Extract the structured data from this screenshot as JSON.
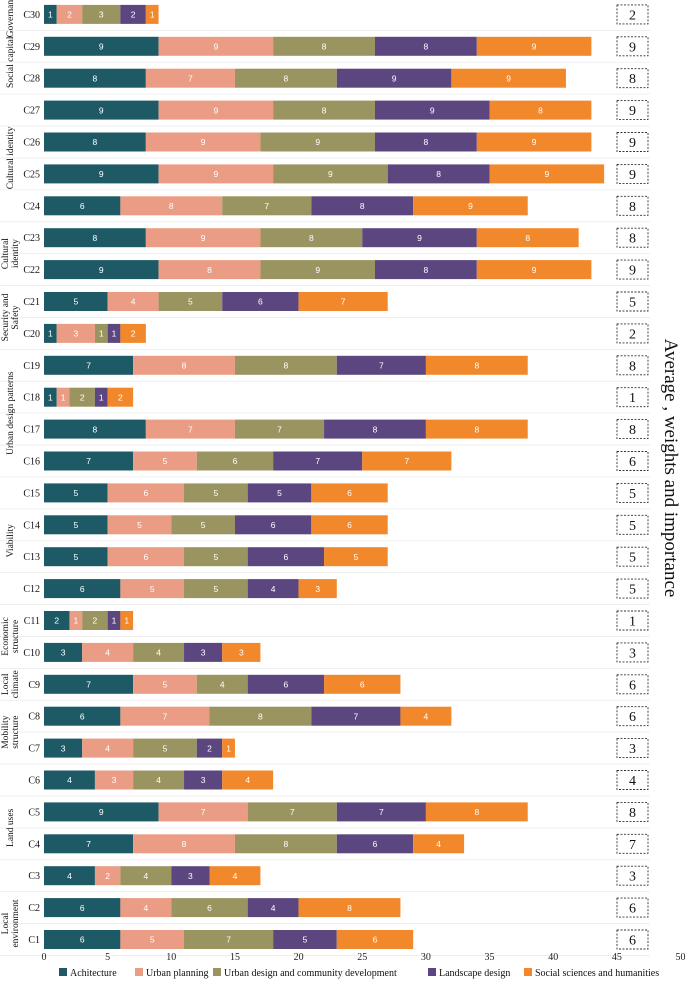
{
  "chart_data": {
    "type": "bar",
    "orientation": "horizontal",
    "stacked": true,
    "title": "",
    "xlabel": "",
    "ylabel": "Average , weights and importance",
    "xlim": [
      0,
      50
    ],
    "xticks": [
      0,
      5,
      10,
      15,
      20,
      25,
      30,
      35,
      40,
      45,
      50
    ],
    "legend_position": "bottom",
    "colors": [
      "#1e5a66",
      "#eb9c84",
      "#9a9460",
      "#5c4680",
      "#f2882c"
    ],
    "categories": [
      "C1",
      "C2",
      "C3",
      "C4",
      "C5",
      "C6",
      "C7",
      "C8",
      "C9",
      "C10",
      "C11",
      "C12",
      "C13",
      "C14",
      "C15",
      "C16",
      "C17",
      "C18",
      "C19",
      "C20",
      "C21",
      "C22",
      "C23",
      "C24",
      "C25",
      "C26",
      "C27",
      "C28",
      "C29",
      "C30"
    ],
    "series": [
      {
        "name": "Achitecture",
        "values": [
          6,
          6,
          4,
          7,
          9,
          4,
          3,
          6,
          7,
          3,
          2,
          6,
          5,
          5,
          5,
          7,
          8,
          1,
          7,
          1,
          5,
          9,
          8,
          6,
          9,
          8,
          9,
          8,
          9,
          1
        ]
      },
      {
        "name": "Urban planning",
        "values": [
          5,
          4,
          2,
          8,
          7,
          3,
          4,
          7,
          5,
          4,
          1,
          5,
          6,
          5,
          6,
          5,
          7,
          1,
          8,
          3,
          4,
          8,
          9,
          8,
          9,
          9,
          9,
          7,
          9,
          2
        ]
      },
      {
        "name": "Urban design and community development",
        "values": [
          7,
          6,
          4,
          8,
          7,
          4,
          5,
          8,
          4,
          4,
          2,
          5,
          5,
          5,
          5,
          6,
          7,
          2,
          8,
          1,
          5,
          9,
          8,
          7,
          9,
          9,
          8,
          8,
          8,
          3
        ]
      },
      {
        "name": "Landscape design",
        "values": [
          5,
          4,
          3,
          6,
          7,
          3,
          2,
          7,
          6,
          3,
          1,
          4,
          6,
          6,
          5,
          7,
          8,
          1,
          7,
          1,
          6,
          8,
          9,
          8,
          8,
          8,
          9,
          9,
          8,
          2
        ]
      },
      {
        "name": "Social sciences and humanities",
        "values": [
          6,
          8,
          4,
          4,
          8,
          4,
          1,
          4,
          6,
          3,
          1,
          3,
          5,
          6,
          6,
          7,
          8,
          2,
          8,
          2,
          7,
          9,
          8,
          9,
          9,
          9,
          8,
          9,
          9,
          1
        ]
      }
    ],
    "averages": [
      6,
      6,
      3,
      7,
      8,
      4,
      3,
      6,
      6,
      3,
      1,
      5,
      5,
      5,
      5,
      6,
      8,
      1,
      8,
      2,
      5,
      9,
      8,
      8,
      9,
      9,
      9,
      8,
      9,
      2
    ],
    "groups": [
      {
        "label": [
          "Local",
          "environment"
        ],
        "from": "C1",
        "to": "C2"
      },
      {
        "label": [
          "Land uses"
        ],
        "from": "C3",
        "to": "C6"
      },
      {
        "label": [
          "Mobility",
          "structure"
        ],
        "from": "C7",
        "to": "C8"
      },
      {
        "label": [
          "Local",
          "climate"
        ],
        "from": "C9",
        "to": "C9"
      },
      {
        "label": [
          "Economic",
          "structure"
        ],
        "from": "C10",
        "to": "C11"
      },
      {
        "label": [
          "Viability"
        ],
        "from": "C12",
        "to": "C15"
      },
      {
        "label": [
          "Urban design patterns"
        ],
        "from": "C16",
        "to": "C19"
      },
      {
        "label": [
          "Security and",
          "Safety"
        ],
        "from": "C20",
        "to": "C21"
      },
      {
        "label": [
          "Cultural",
          "identity"
        ],
        "from": "C22",
        "to": "C23"
      },
      {
        "label": [
          "Cultural identity"
        ],
        "from": "C24",
        "to": "C27"
      },
      {
        "label": [
          "Social capital"
        ],
        "from": "C28",
        "to": "C29"
      },
      {
        "label": [
          "Governance"
        ],
        "from": "C30",
        "to": "C30"
      }
    ]
  }
}
